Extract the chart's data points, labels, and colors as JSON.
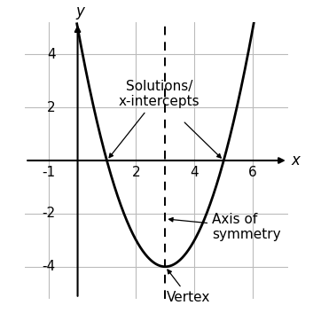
{
  "xlim": [
    -1.8,
    7.2
  ],
  "ylim": [
    -5.2,
    5.2
  ],
  "xticks": [
    -1,
    2,
    4,
    6
  ],
  "yticks": [
    -4,
    -2,
    2,
    4
  ],
  "vertex_x": 3,
  "vertex_y": -4,
  "root1": 1,
  "root2": 5,
  "axis_of_symmetry_x": 3,
  "parabola_color": "#000000",
  "grid_color": "#bbbbbb",
  "background_color": "#ffffff",
  "label_solutions": "Solutions/\nx-intercepts",
  "label_axis": "Axis of\nsymmetry",
  "label_vertex": "Vertex",
  "xlabel": "x",
  "ylabel": "y",
  "tick_fontsize": 11,
  "annotation_fontsize": 11,
  "axis_label_fontsize": 12
}
